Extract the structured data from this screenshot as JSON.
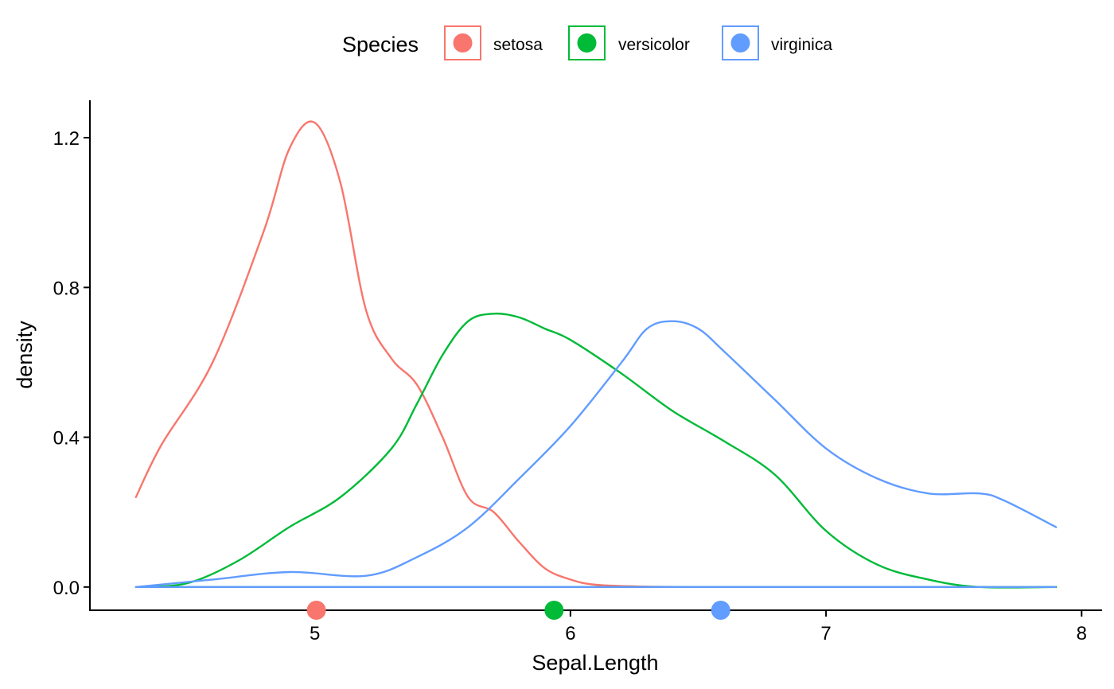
{
  "chart_data": {
    "type": "area",
    "xlabel": "Sepal.Length",
    "ylabel": "density",
    "xlim": [
      4.12,
      8.08
    ],
    "ylim": [
      -0.062,
      1.3
    ],
    "x_ticks": [
      5,
      6,
      7,
      8
    ],
    "y_ticks": [
      0.0,
      0.4,
      0.8,
      1.2
    ],
    "y_tick_labels": [
      "0.0",
      "0.4",
      "0.8",
      "1.2"
    ],
    "grid": false,
    "legend": {
      "title": "Species",
      "position": "top",
      "entries": [
        "setosa",
        "versicolor",
        "virginica"
      ]
    },
    "series": [
      {
        "name": "setosa",
        "color": "#F8766D",
        "mean": 5.006,
        "x": [
          4.3,
          4.4,
          4.6,
          4.8,
          4.9,
          5.0,
          5.1,
          5.2,
          5.3,
          5.4,
          5.5,
          5.6,
          5.7,
          5.8,
          5.9,
          6.0,
          6.1,
          6.3,
          6.6,
          7.0,
          7.5,
          7.9
        ],
        "y": [
          0.24,
          0.38,
          0.6,
          0.95,
          1.17,
          1.24,
          1.08,
          0.74,
          0.61,
          0.54,
          0.4,
          0.24,
          0.2,
          0.12,
          0.05,
          0.02,
          0.006,
          0.001,
          0.0,
          0.0,
          0.0,
          0.0
        ]
      },
      {
        "name": "versicolor",
        "color": "#00BA38",
        "mean": 5.936,
        "x": [
          4.3,
          4.5,
          4.7,
          4.9,
          5.1,
          5.3,
          5.4,
          5.5,
          5.6,
          5.7,
          5.8,
          5.9,
          6.0,
          6.2,
          6.4,
          6.6,
          6.8,
          7.0,
          7.2,
          7.4,
          7.6,
          7.9
        ],
        "y": [
          0.0,
          0.01,
          0.07,
          0.16,
          0.24,
          0.37,
          0.49,
          0.62,
          0.71,
          0.73,
          0.72,
          0.69,
          0.66,
          0.57,
          0.47,
          0.39,
          0.3,
          0.15,
          0.06,
          0.02,
          0.0,
          0.0
        ]
      },
      {
        "name": "virginica",
        "color": "#619CFF",
        "mean": 6.588,
        "x": [
          4.3,
          4.6,
          4.9,
          5.2,
          5.4,
          5.6,
          5.8,
          6.0,
          6.2,
          6.3,
          6.4,
          6.5,
          6.6,
          6.8,
          7.0,
          7.2,
          7.4,
          7.6,
          7.7,
          7.9
        ],
        "y": [
          0.0,
          0.02,
          0.04,
          0.03,
          0.08,
          0.16,
          0.29,
          0.43,
          0.6,
          0.69,
          0.71,
          0.69,
          0.63,
          0.5,
          0.37,
          0.29,
          0.25,
          0.25,
          0.23,
          0.16
        ]
      }
    ]
  }
}
